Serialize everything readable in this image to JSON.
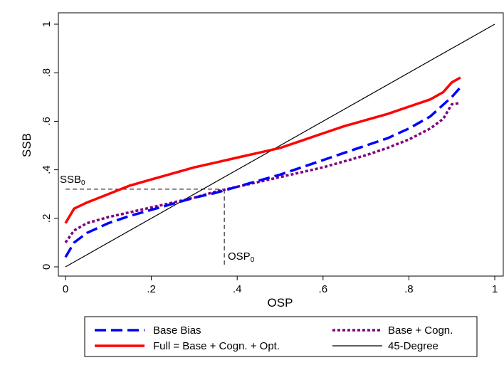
{
  "chart_data": {
    "type": "line",
    "title": "",
    "xlabel": "OSP",
    "ylabel": "SSB",
    "xlim": [
      0,
      1
    ],
    "ylim": [
      0,
      1
    ],
    "x_ticks": [
      0,
      0.2,
      0.4,
      0.6,
      0.8,
      1
    ],
    "x_tick_labels": [
      "0",
      ".2",
      ".4",
      ".6",
      ".8",
      "1"
    ],
    "y_ticks": [
      0,
      0.2,
      0.4,
      0.6,
      0.8,
      1
    ],
    "y_tick_labels": [
      "0",
      ".2",
      ".4",
      ".6",
      ".8",
      "1"
    ],
    "grid": false,
    "legend_position": "bottom",
    "series": [
      {
        "name": "Base Bias",
        "color": "#0000ff",
        "style": "dashed",
        "x": [
          0,
          0.02,
          0.05,
          0.1,
          0.15,
          0.2,
          0.25,
          0.3,
          0.35,
          0.4,
          0.45,
          0.5,
          0.55,
          0.6,
          0.65,
          0.7,
          0.75,
          0.8,
          0.85,
          0.9,
          0.92
        ],
        "y": [
          0.04,
          0.1,
          0.14,
          0.18,
          0.21,
          0.235,
          0.26,
          0.285,
          0.305,
          0.33,
          0.355,
          0.38,
          0.41,
          0.44,
          0.47,
          0.5,
          0.53,
          0.57,
          0.62,
          0.7,
          0.74
        ]
      },
      {
        "name": "Base + Cogn.",
        "color": "#800080",
        "style": "dotted",
        "x": [
          0,
          0.02,
          0.05,
          0.1,
          0.15,
          0.2,
          0.25,
          0.3,
          0.35,
          0.4,
          0.45,
          0.5,
          0.55,
          0.6,
          0.65,
          0.7,
          0.75,
          0.8,
          0.85,
          0.88,
          0.9,
          0.92
        ],
        "y": [
          0.1,
          0.15,
          0.18,
          0.205,
          0.225,
          0.245,
          0.265,
          0.285,
          0.31,
          0.33,
          0.35,
          0.37,
          0.39,
          0.41,
          0.435,
          0.46,
          0.49,
          0.525,
          0.57,
          0.61,
          0.67,
          0.675
        ]
      },
      {
        "name": "Full = Base + Cogn. + Opt.",
        "color": "#ff0000",
        "style": "solid",
        "x": [
          0,
          0.02,
          0.05,
          0.1,
          0.15,
          0.2,
          0.25,
          0.3,
          0.35,
          0.4,
          0.45,
          0.5,
          0.55,
          0.6,
          0.65,
          0.7,
          0.75,
          0.8,
          0.85,
          0.88,
          0.9,
          0.92
        ],
        "y": [
          0.18,
          0.24,
          0.265,
          0.3,
          0.335,
          0.36,
          0.385,
          0.41,
          0.43,
          0.45,
          0.47,
          0.49,
          0.52,
          0.55,
          0.58,
          0.605,
          0.63,
          0.66,
          0.69,
          0.72,
          0.76,
          0.78
        ]
      },
      {
        "name": "45-Degree",
        "color": "#000000",
        "style": "thin",
        "x": [
          0,
          1
        ],
        "y": [
          0,
          1
        ]
      }
    ],
    "reference": {
      "x": 0.37,
      "y": 0.32
    },
    "annotations": [
      {
        "base": "SSB",
        "sub": "0"
      },
      {
        "base": "OSP",
        "sub": "0"
      }
    ]
  }
}
